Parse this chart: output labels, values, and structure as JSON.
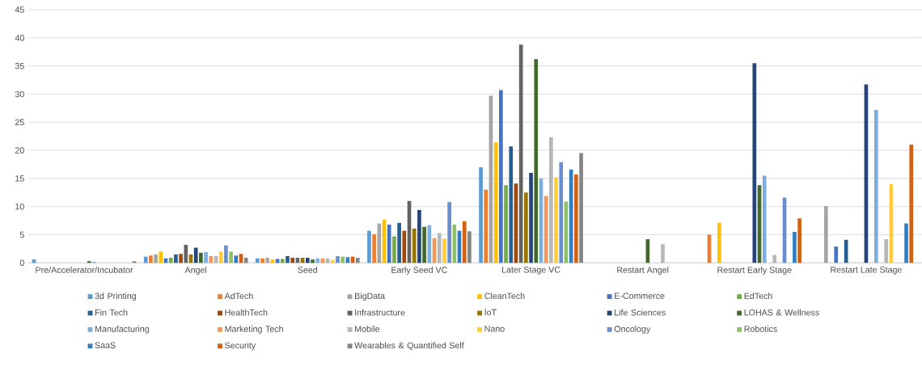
{
  "chart_data": {
    "type": "bar",
    "categories": [
      "Pre/Accelerator/Incubator",
      "Angel",
      "Seed",
      "Early Seed VC",
      "Later Stage VC",
      "Restart Angel",
      "Restart Early Stage",
      "Restart Late Stage"
    ],
    "ylim": [
      0,
      45
    ],
    "yticks": [
      0,
      5,
      10,
      15,
      20,
      25,
      30,
      35,
      40,
      45
    ],
    "grid": "y",
    "legend": "bottom",
    "series": [
      {
        "name": "3d Printing",
        "color": "#5b9bd5",
        "values": [
          0.6,
          1.1,
          0.8,
          5.7,
          17.0,
          null,
          null,
          null
        ]
      },
      {
        "name": "AdTech",
        "color": "#ed7d31",
        "values": [
          null,
          1.3,
          0.8,
          5.1,
          13.0,
          null,
          5.0,
          null
        ]
      },
      {
        "name": "BigData",
        "color": "#a5a5a5",
        "values": [
          null,
          1.5,
          0.9,
          7.0,
          29.7,
          null,
          null,
          10.1
        ]
      },
      {
        "name": "CleanTech",
        "color": "#ffc000",
        "values": [
          null,
          2.0,
          0.6,
          7.7,
          21.4,
          null,
          7.1,
          null
        ]
      },
      {
        "name": "E-Commerce",
        "color": "#4472c4",
        "values": [
          null,
          0.8,
          0.7,
          6.8,
          30.7,
          null,
          null,
          2.9
        ]
      },
      {
        "name": "EdTech",
        "color": "#70ad47",
        "values": [
          null,
          0.9,
          0.7,
          4.7,
          13.8,
          null,
          null,
          null
        ]
      },
      {
        "name": "Fin Tech",
        "color": "#255e91",
        "values": [
          null,
          1.5,
          1.2,
          7.1,
          20.7,
          null,
          null,
          4.1
        ]
      },
      {
        "name": "HealthTech",
        "color": "#9e480e",
        "values": [
          null,
          1.6,
          0.9,
          5.7,
          14.1,
          null,
          null,
          null
        ]
      },
      {
        "name": "Infrastructure",
        "color": "#636363",
        "values": [
          null,
          3.2,
          0.9,
          11.0,
          38.8,
          null,
          null,
          null
        ]
      },
      {
        "name": "IoT",
        "color": "#997300",
        "values": [
          null,
          1.5,
          0.9,
          6.1,
          12.5,
          null,
          null,
          null
        ]
      },
      {
        "name": "Life Sciences",
        "color": "#264478",
        "values": [
          null,
          2.7,
          0.9,
          9.4,
          16.0,
          null,
          35.5,
          31.7
        ]
      },
      {
        "name": "LOHAS & Wellness",
        "color": "#43682b",
        "values": [
          0.3,
          1.8,
          0.6,
          6.4,
          36.2,
          4.2,
          13.8,
          null
        ]
      },
      {
        "name": "Manufacturing",
        "color": "#7cafdd",
        "values": [
          0.2,
          1.9,
          0.8,
          6.7,
          15.0,
          null,
          15.5,
          27.2
        ]
      },
      {
        "name": "Marketing Tech",
        "color": "#f1975a",
        "values": [
          null,
          1.2,
          0.8,
          4.4,
          11.9,
          null,
          null,
          null
        ]
      },
      {
        "name": "Mobile",
        "color": "#b7b7b7",
        "values": [
          null,
          1.2,
          0.8,
          5.3,
          22.3,
          3.3,
          1.4,
          4.2
        ]
      },
      {
        "name": "Nano",
        "color": "#ffcd33",
        "values": [
          null,
          2.0,
          0.5,
          4.3,
          15.2,
          null,
          null,
          14.0
        ]
      },
      {
        "name": "Oncology",
        "color": "#698ed0",
        "values": [
          null,
          3.1,
          1.2,
          10.8,
          17.9,
          null,
          11.6,
          null
        ]
      },
      {
        "name": "Robotics",
        "color": "#8cc168",
        "values": [
          null,
          2.0,
          1.1,
          6.8,
          10.9,
          null,
          null,
          null
        ]
      },
      {
        "name": "SaaS",
        "color": "#327dc2",
        "values": [
          null,
          1.3,
          1.0,
          5.7,
          16.6,
          null,
          5.5,
          7.0
        ]
      },
      {
        "name": "Security",
        "color": "#d26012",
        "values": [
          null,
          1.6,
          1.1,
          7.4,
          15.7,
          null,
          7.9,
          21.0
        ]
      },
      {
        "name": "Wearables & Quantified Self",
        "color": "#848484",
        "values": [
          0.3,
          0.9,
          0.9,
          5.6,
          19.5,
          null,
          null,
          null
        ]
      }
    ]
  }
}
